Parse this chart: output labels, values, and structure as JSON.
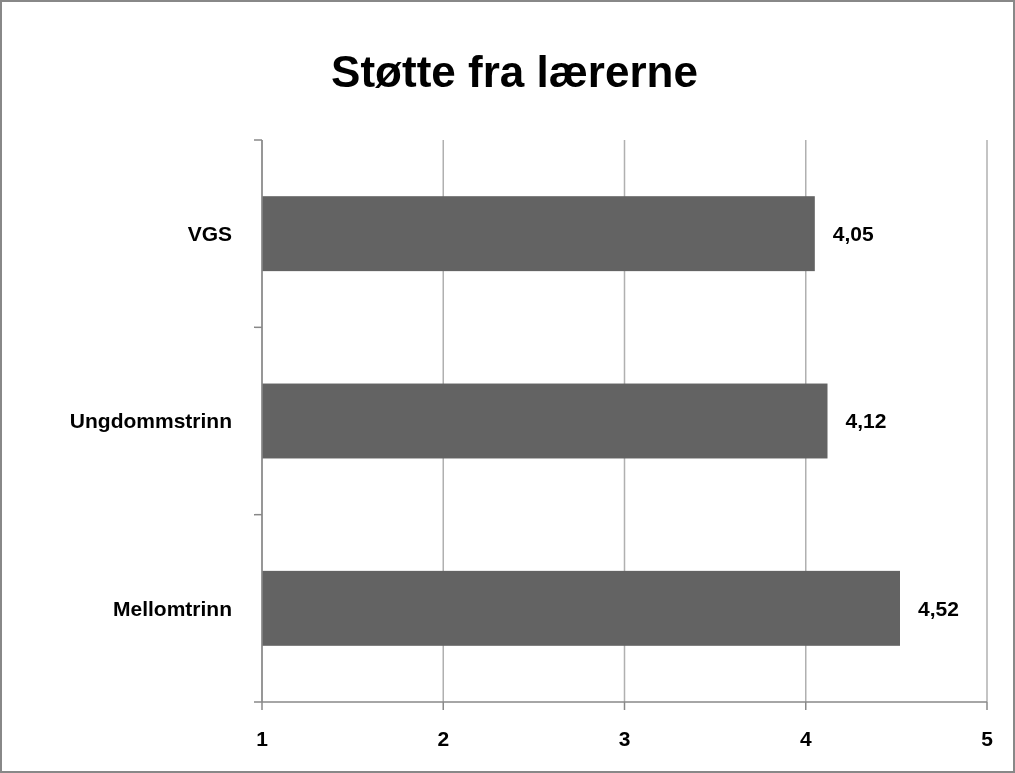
{
  "chart_data": {
    "type": "bar",
    "orientation": "horizontal",
    "title": "Støtte fra lærerne",
    "categories": [
      "VGS",
      "Ungdommstrinn",
      "Mellomtrinn"
    ],
    "values": [
      4.05,
      4.12,
      4.52
    ],
    "value_labels": [
      "4,05",
      "4,12",
      "4,52"
    ],
    "color": "#636363",
    "xlim": [
      1,
      5
    ],
    "xticks": [
      1,
      2,
      3,
      4,
      5
    ],
    "grid": "x"
  }
}
